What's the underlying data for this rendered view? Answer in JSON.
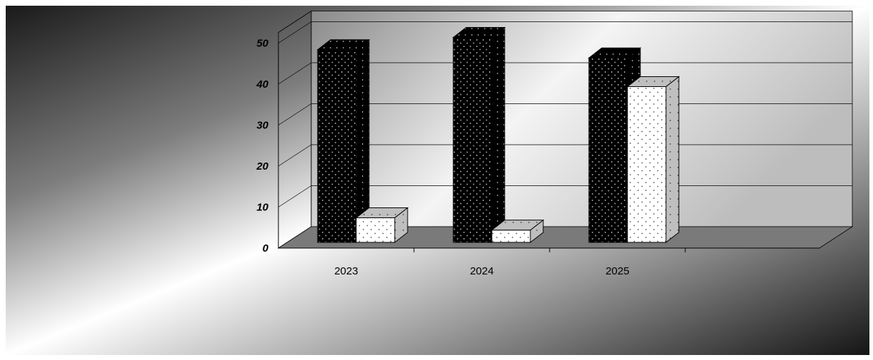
{
  "chart_data": {
    "type": "bar",
    "categories": [
      "2023",
      "2024",
      "2025"
    ],
    "series": [
      {
        "values": [
          47,
          50,
          45
        ],
        "color": "#000000",
        "pattern": "dots-on-black"
      },
      {
        "values": [
          6,
          3,
          38
        ],
        "color": "#ffffff",
        "pattern": "dots-on-white"
      }
    ],
    "yticks": [
      "0",
      "10",
      "20",
      "30",
      "40",
      "50"
    ],
    "ylim": [
      0,
      50
    ],
    "title": "",
    "xlabel": "",
    "ylabel": "",
    "grid": true,
    "legend": "none",
    "three_d": true,
    "background": "diagonal-gradient-black-white"
  }
}
